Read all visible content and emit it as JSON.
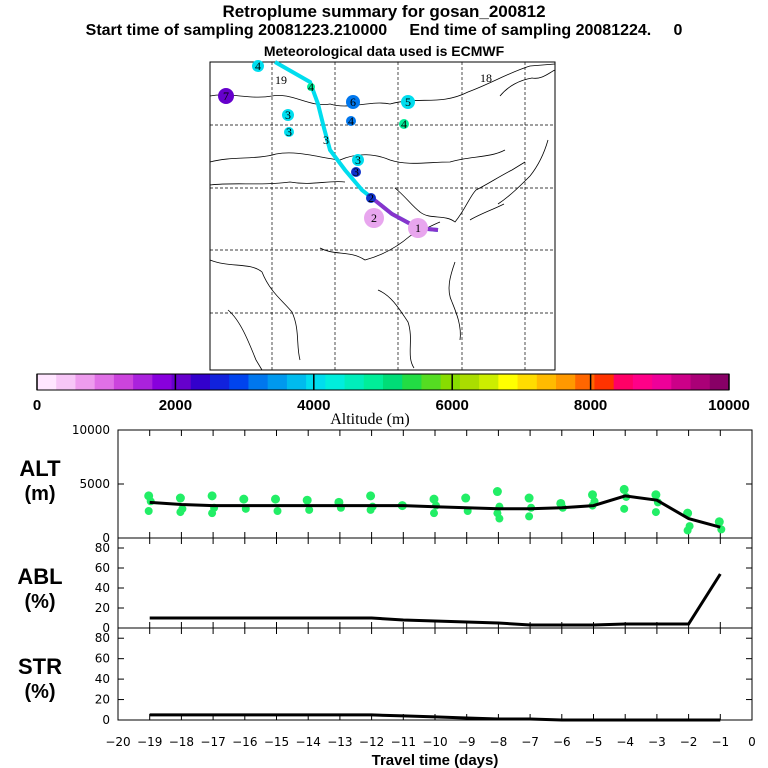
{
  "header": {
    "title": "Retroplume summary for gosan_200812",
    "sampling_line": "Start time of sampling 20081223.210000     End time of sampling 20081224.     0",
    "met_line": "Meteorological data used is ECMWF"
  },
  "colorbar": {
    "label": "Altitude (m)",
    "ticks": [
      "0",
      "2000",
      "4000",
      "6000",
      "8000",
      "10000"
    ],
    "colors": [
      "#ffe6ff",
      "#f7c6f7",
      "#ee9cee",
      "#e070e6",
      "#cc44dd",
      "#aa22dd",
      "#8800dd",
      "#6600cc",
      "#3300cc",
      "#1122dd",
      "#0044ee",
      "#0077ee",
      "#0099ee",
      "#00bbee",
      "#00ddee",
      "#00eedd",
      "#00eebb",
      "#00ee99",
      "#00dd77",
      "#22dd44",
      "#55dd22",
      "#88dd00",
      "#aadd00",
      "#ccee00",
      "#ffff00",
      "#ffdd00",
      "#ffbb00",
      "#ff9900",
      "#ff6600",
      "#ff3300",
      "#ff0066",
      "#ff0088",
      "#ee0099",
      "#cc0088",
      "#aa0077",
      "#880066"
    ]
  },
  "map": {
    "trajectory_labels": [
      {
        "text": "1",
        "color": "#e8a6ee"
      },
      {
        "text": "2",
        "color": "#e8a6ee"
      },
      {
        "text": "2",
        "color": "#1133cc"
      },
      {
        "text": "3",
        "color": "#00ddee"
      },
      {
        "text": "3",
        "color": "#1133cc"
      },
      {
        "text": "3",
        "color": "#00ddee"
      },
      {
        "text": "4",
        "color": "#00ddee"
      },
      {
        "text": "4",
        "color": "#00ee99"
      },
      {
        "text": "4",
        "color": "#0077ee"
      },
      {
        "text": "4",
        "color": "#00ee99"
      },
      {
        "text": "5",
        "color": "#00ddee"
      },
      {
        "text": "6",
        "color": "#0077ee"
      },
      {
        "text": "7",
        "color": "#6600cc"
      },
      {
        "text": "18",
        "color": "#00ddee"
      },
      {
        "text": "19",
        "color": "#00ddee"
      },
      {
        "text": "3",
        "color": "#00ddee"
      },
      {
        "text": "3",
        "color": "#00ddee"
      }
    ]
  },
  "chart_data": [
    {
      "type": "line",
      "panel": "ALT",
      "ylabel_lines": [
        "ALT",
        "(m)"
      ],
      "x": [
        -19,
        -18,
        -17,
        -16,
        -15,
        -14,
        -13,
        -12,
        -11,
        -10,
        -9,
        -8,
        -7,
        -6,
        -5,
        -4,
        -3,
        -2,
        -1
      ],
      "series": [
        {
          "name": "median altitude",
          "values": [
            3300,
            3100,
            3000,
            3000,
            3000,
            3000,
            3000,
            3000,
            3000,
            2900,
            2800,
            2700,
            2700,
            2800,
            3000,
            3900,
            3500,
            1800,
            1000
          ]
        }
      ],
      "scatter": [
        {
          "x": -19,
          "y": [
            3900,
            3400,
            2500
          ]
        },
        {
          "x": -18,
          "y": [
            3700,
            2700,
            2400
          ]
        },
        {
          "x": -17,
          "y": [
            3900,
            2800,
            2300
          ]
        },
        {
          "x": -16,
          "y": [
            3600,
            2700
          ]
        },
        {
          "x": -15,
          "y": [
            3600,
            2500
          ]
        },
        {
          "x": -14,
          "y": [
            3500,
            2600
          ]
        },
        {
          "x": -13,
          "y": [
            3300,
            2800
          ]
        },
        {
          "x": -12,
          "y": [
            3900,
            2900,
            2600
          ]
        },
        {
          "x": -11,
          "y": [
            3000
          ]
        },
        {
          "x": -10,
          "y": [
            3600,
            3000,
            2300
          ]
        },
        {
          "x": -9,
          "y": [
            3700,
            2500
          ]
        },
        {
          "x": -8,
          "y": [
            4300,
            2900,
            2300,
            1800
          ]
        },
        {
          "x": -7,
          "y": [
            3700,
            2800,
            2000
          ]
        },
        {
          "x": -6,
          "y": [
            3200,
            2800
          ]
        },
        {
          "x": -5,
          "y": [
            4000,
            3400,
            3000
          ]
        },
        {
          "x": -4,
          "y": [
            4500,
            3800,
            2700
          ]
        },
        {
          "x": -3,
          "y": [
            4000,
            3300,
            2400
          ]
        },
        {
          "x": -2,
          "y": [
            2300,
            1100,
            700
          ]
        },
        {
          "x": -1,
          "y": [
            1500,
            800
          ]
        }
      ],
      "xlim": [
        -20,
        0
      ],
      "ylim": [
        0,
        10000
      ],
      "yticks": [
        "10000",
        "5000",
        "0"
      ]
    },
    {
      "type": "line",
      "panel": "ABL",
      "ylabel_lines": [
        "ABL",
        "(%)"
      ],
      "x": [
        -19,
        -18,
        -17,
        -16,
        -15,
        -14,
        -13,
        -12,
        -11,
        -10,
        -9,
        -8,
        -7,
        -6,
        -5,
        -4,
        -3,
        -2,
        -1
      ],
      "series": [
        {
          "name": "fraction in ABL",
          "values": [
            10,
            10,
            10,
            10,
            10,
            10,
            10,
            10,
            8,
            7,
            6,
            5,
            3,
            3,
            3,
            4,
            4,
            4,
            54
          ]
        }
      ],
      "xlim": [
        -20,
        0
      ],
      "ylim": [
        0,
        90
      ],
      "yticks": [
        "0",
        "20",
        "40",
        "60",
        "80"
      ]
    },
    {
      "type": "line",
      "panel": "STR",
      "ylabel_lines": [
        "STR",
        "(%)"
      ],
      "x": [
        -19,
        -18,
        -17,
        -16,
        -15,
        -14,
        -13,
        -12,
        -11,
        -10,
        -9,
        -8,
        -7,
        -6,
        -5,
        -4,
        -3,
        -2,
        -1
      ],
      "series": [
        {
          "name": "fraction in stratosphere",
          "values": [
            5,
            5,
            5,
            5,
            5,
            5,
            5,
            5,
            4,
            3,
            2,
            1,
            1,
            0,
            0,
            0,
            0,
            0,
            0
          ]
        }
      ],
      "xlim": [
        -20,
        0
      ],
      "ylim": [
        0,
        90
      ],
      "yticks": [
        "0",
        "20",
        "40",
        "60",
        "80"
      ],
      "xlabel": "Travel time (days)",
      "xticks": [
        "−20",
        "−19",
        "−18",
        "−17",
        "−16",
        "−15",
        "−14",
        "−13",
        "−12",
        "−11",
        "−10",
        "−9",
        "−8",
        "−7",
        "−6",
        "−5",
        "−4",
        "−3",
        "−2",
        "−1",
        "0"
      ]
    }
  ]
}
